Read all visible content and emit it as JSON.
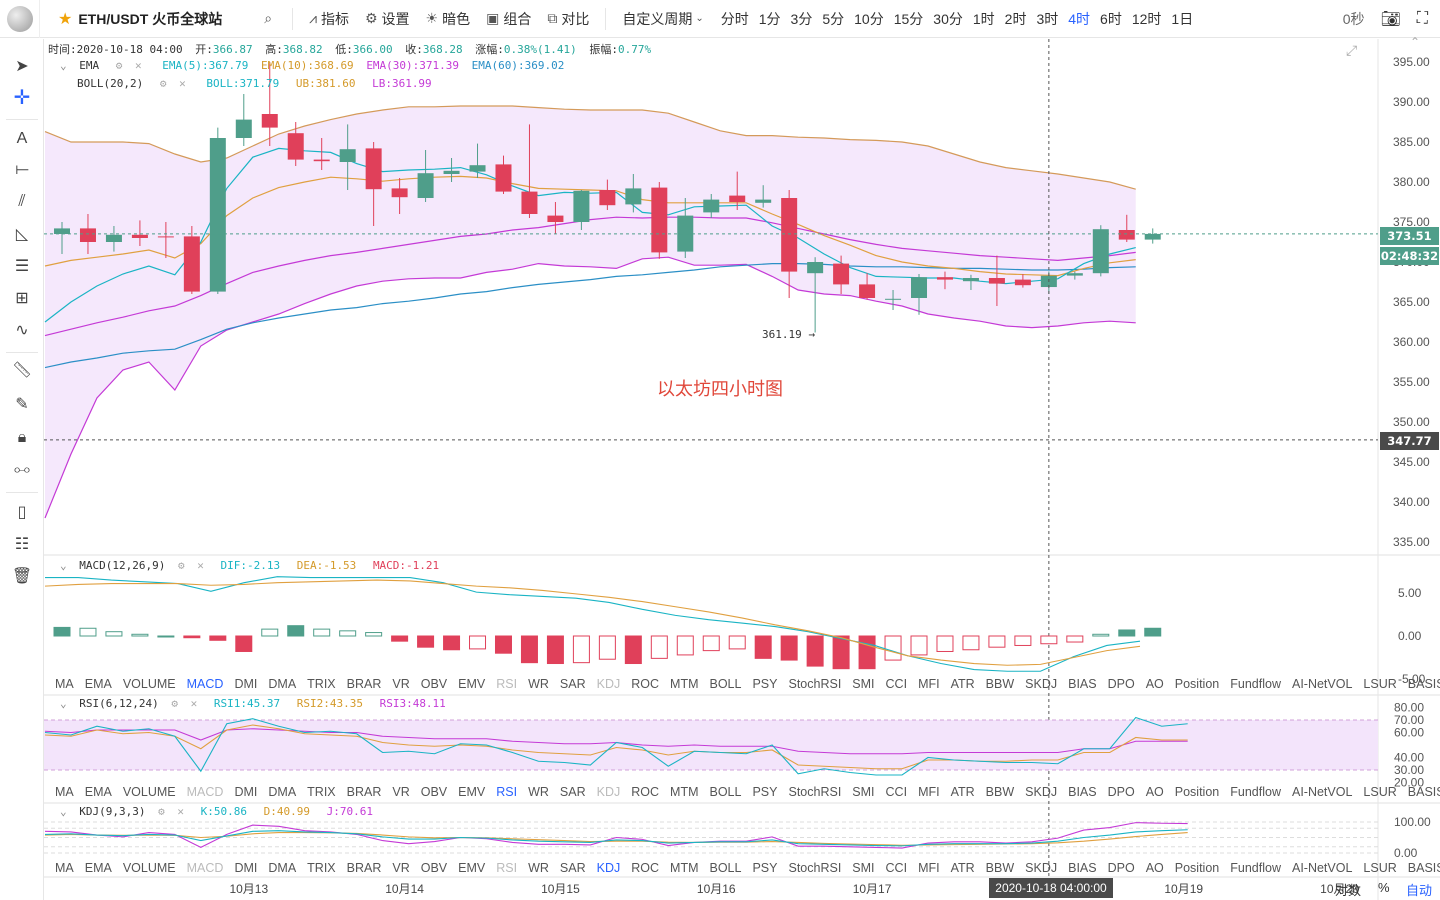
{
  "topbar": {
    "symbol": "ETH/USDT 火币全球站",
    "indicators_label": "指标",
    "settings_label": "设置",
    "theme_label": "暗色",
    "combo_label": "组合",
    "compare_label": "对比",
    "custom_period_label": "自定义周期",
    "periods": [
      "分时",
      "1分",
      "3分",
      "5分",
      "10分",
      "15分",
      "30分",
      "1时",
      "2时",
      "3时",
      "4时",
      "6时",
      "12时",
      "1日"
    ],
    "active_period": "4时",
    "countdown": "0秒"
  },
  "ohlc_info": {
    "time_label": "时间:",
    "time": "2020-10-18 04:00",
    "open_label": "开:",
    "open": "366.87",
    "high_label": "高:",
    "high": "368.82",
    "low_label": "低:",
    "low": "366.00",
    "close_label": "收:",
    "close": "368.28",
    "change_label": "涨幅:",
    "change": "0.38%(1.41)",
    "amplitude_label": "振幅:",
    "amplitude": "0.77%"
  },
  "legends": {
    "ema": {
      "name": "EMA",
      "ema5": "EMA(5):367.79",
      "ema10": "EMA(10):368.69",
      "ema30": "EMA(30):371.39",
      "ema60": "EMA(60):369.02"
    },
    "boll": {
      "name": "BOLL(20,2)",
      "boll": "BOLL:371.79",
      "ub": "UB:381.60",
      "lb": "LB:361.99"
    },
    "macd": {
      "name": "MACD(12,26,9)",
      "dif": "DIF:-2.13",
      "dea": "DEA:-1.53",
      "macd": "MACD:-1.21"
    },
    "rsi": {
      "name": "RSI(6,12,24)",
      "rsi1": "RSI1:45.37",
      "rsi2": "RSI2:43.35",
      "rsi3": "RSI3:48.11"
    },
    "kdj": {
      "name": "KDJ(9,3,3)",
      "k": "K:50.86",
      "d": "D:40.99",
      "j": "J:70.61"
    }
  },
  "indicator_tabs": [
    "MA",
    "EMA",
    "VOLUME",
    "MACD",
    "DMI",
    "DMA",
    "TRIX",
    "BRAR",
    "VR",
    "OBV",
    "EMV",
    "RSI",
    "WR",
    "SAR",
    "KDJ",
    "ROC",
    "MTM",
    "BOLL",
    "PSY",
    "StochRSI",
    "SMI",
    "CCI",
    "MFI",
    "ATR",
    "BBW",
    "SKDJ",
    "BIAS",
    "DPO",
    "AO",
    "Position",
    "Fundflow",
    "AI-NetVOL",
    "LSUR",
    "BASIS"
  ],
  "tab_states": [
    {
      "active": "MACD",
      "dim": [
        "RSI",
        "KDJ"
      ]
    },
    {
      "active": "RSI",
      "dim": [
        "MACD",
        "KDJ"
      ]
    },
    {
      "active": "KDJ",
      "dim": [
        "MACD",
        "RSI"
      ]
    }
  ],
  "watermark": "以太坊四小时图",
  "low_marker": "361.19 →",
  "price_tags": {
    "last": "373.51",
    "countdown": "02:48:32",
    "crosshair": "347.77"
  },
  "crosshair_time": "2020-10-18 04:00:00",
  "bottom_right": {
    "log": "对数",
    "percent": "%",
    "auto": "自动"
  },
  "colors": {
    "up": "#26a69a",
    "up_fill": "#4f9e8a",
    "down": "#e0405a",
    "boll_fill": "#f3e4fb",
    "ema5": "#1ab4c4",
    "ema10": "#e0a040",
    "ema30": "#c43ad6",
    "ema60": "#2b8fc6",
    "accent": "#2962ff"
  },
  "chart_data": {
    "type": "candlestick",
    "title": "以太坊四小时图",
    "pair": "ETH/USDT",
    "interval": "4h",
    "x_tick_labels": [
      "10月13",
      "10月14",
      "10月15",
      "10月16",
      "10月17",
      "10月18",
      "10月19",
      "10月20"
    ],
    "x_tick_index": [
      7,
      13,
      19,
      25,
      31,
      36,
      43,
      49
    ],
    "y_ticks": [
      335,
      340,
      345,
      350,
      355,
      360,
      365,
      370,
      375,
      380,
      385,
      390,
      395
    ],
    "ylim": [
      333,
      398
    ],
    "candles": [
      {
        "o": 373.5,
        "h": 375,
        "l": 371,
        "c": 374.2
      },
      {
        "o": 374.2,
        "h": 376,
        "l": 371,
        "c": 372.5
      },
      {
        "o": 372.5,
        "h": 374.5,
        "l": 371.3,
        "c": 373.4
      },
      {
        "o": 373.4,
        "h": 375.2,
        "l": 372,
        "c": 373
      },
      {
        "o": 373.2,
        "h": 375,
        "l": 370.5,
        "c": 373.1
      },
      {
        "o": 373.2,
        "h": 374.5,
        "l": 366,
        "c": 366.3
      },
      {
        "o": 366.3,
        "h": 386.8,
        "l": 366,
        "c": 385.5
      },
      {
        "o": 385.5,
        "h": 391,
        "l": 384.5,
        "c": 387.8
      },
      {
        "o": 388.5,
        "h": 395,
        "l": 384.5,
        "c": 386.8
      },
      {
        "o": 386.1,
        "h": 387.5,
        "l": 382,
        "c": 382.8
      },
      {
        "o": 382.8,
        "h": 385.5,
        "l": 381.5,
        "c": 382.6
      },
      {
        "o": 382.5,
        "h": 387.2,
        "l": 379,
        "c": 384.1
      },
      {
        "o": 384.2,
        "h": 385,
        "l": 374.5,
        "c": 379.1
      },
      {
        "o": 379.2,
        "h": 380.5,
        "l": 376,
        "c": 378.1
      },
      {
        "o": 378,
        "h": 384,
        "l": 377.5,
        "c": 381.1
      },
      {
        "o": 381,
        "h": 383,
        "l": 380,
        "c": 381.4
      },
      {
        "o": 381.3,
        "h": 384.8,
        "l": 380.5,
        "c": 382.1
      },
      {
        "o": 382.2,
        "h": 383.3,
        "l": 378.5,
        "c": 378.8
      },
      {
        "o": 378.8,
        "h": 387.2,
        "l": 375.5,
        "c": 376
      },
      {
        "o": 375.8,
        "h": 377.5,
        "l": 373.5,
        "c": 375
      },
      {
        "o": 375,
        "h": 379,
        "l": 374,
        "c": 378.9
      },
      {
        "o": 379,
        "h": 380.3,
        "l": 376.5,
        "c": 377.1
      },
      {
        "o": 377.2,
        "h": 381,
        "l": 376.2,
        "c": 379.2
      },
      {
        "o": 379.3,
        "h": 380,
        "l": 370.4,
        "c": 371.2
      },
      {
        "o": 371.3,
        "h": 378,
        "l": 370.5,
        "c": 375.8
      },
      {
        "o": 376.2,
        "h": 378.5,
        "l": 375.5,
        "c": 377.8
      },
      {
        "o": 378.3,
        "h": 381.3,
        "l": 376.5,
        "c": 377.5
      },
      {
        "o": 377.4,
        "h": 379.6,
        "l": 376.8,
        "c": 377.8
      },
      {
        "o": 378,
        "h": 379,
        "l": 365.5,
        "c": 368.8
      },
      {
        "o": 368.6,
        "h": 370.6,
        "l": 361.19,
        "c": 370
      },
      {
        "o": 369.8,
        "h": 370.8,
        "l": 366,
        "c": 367.2
      },
      {
        "o": 367.2,
        "h": 368.6,
        "l": 365.3,
        "c": 365.5
      },
      {
        "o": 365.3,
        "h": 366.5,
        "l": 364,
        "c": 365.4
      },
      {
        "o": 365.5,
        "h": 368.5,
        "l": 363.4,
        "c": 368.1
      },
      {
        "o": 368.1,
        "h": 368.8,
        "l": 366.6,
        "c": 367.8
      },
      {
        "o": 367.6,
        "h": 368.4,
        "l": 366.5,
        "c": 368
      },
      {
        "o": 368,
        "h": 370.8,
        "l": 364.5,
        "c": 367.3
      },
      {
        "o": 367.8,
        "h": 368.5,
        "l": 366.8,
        "c": 367.1
      },
      {
        "o": 366.87,
        "h": 368.82,
        "l": 366,
        "c": 368.28
      },
      {
        "o": 368.3,
        "h": 368.8,
        "l": 367.8,
        "c": 368.6
      },
      {
        "o": 368.6,
        "h": 374.6,
        "l": 368.2,
        "c": 374.1
      },
      {
        "o": 374,
        "h": 375.9,
        "l": 372.5,
        "c": 372.8
      },
      {
        "o": 372.8,
        "h": 374.2,
        "l": 372.3,
        "c": 373.51
      }
    ],
    "boll_ub": [
      386.3,
      385,
      385,
      385,
      384.8,
      383.5,
      382.5,
      383,
      384.5,
      386,
      387,
      387.8,
      388.5,
      389,
      389.4,
      389.4,
      389.5,
      389.5,
      389.5,
      389.3,
      389.1,
      389,
      389,
      389,
      388.6,
      387.5,
      386.4,
      385.8,
      385.8,
      385.6,
      385.5,
      385.3,
      385.2,
      385,
      384.5,
      383.5,
      382.5,
      381.8,
      381.4,
      381,
      380.5,
      380,
      379.1
    ],
    "boll_mid": [
      370.2,
      370.5,
      370.8,
      371,
      371.1,
      370.5,
      371.5,
      372.8,
      374.3,
      375.5,
      376.6,
      377.2,
      377.7,
      378,
      378.5,
      379,
      379.3,
      379.6,
      379.5,
      379.3,
      379.2,
      378.9,
      378.5,
      378.4,
      378,
      376.6,
      375.7,
      375.4,
      374.8,
      374,
      372.7,
      371.7,
      371,
      370.6,
      370,
      369.3,
      369,
      368.7,
      368.6,
      368.7,
      369.3,
      370.6,
      371.1
    ],
    "boll_lb": [
      338,
      346,
      353,
      356.5,
      357.5,
      354,
      359.5,
      361.5,
      362.5,
      363.5,
      364.8,
      366,
      367,
      367.6,
      367.9,
      368,
      368,
      368.7,
      369.1,
      369.8,
      369.5,
      369.4,
      369.2,
      370.4,
      370.6,
      369.6,
      369.6,
      369.7,
      368.2,
      366.5,
      366,
      365.8,
      365.1,
      364.5,
      363.5,
      363,
      362.6,
      362,
      361.8,
      362,
      362.4,
      362.6,
      362.4
    ],
    "ema5": [
      362.5,
      365,
      367,
      368.5,
      369.5,
      368.4,
      372.5,
      379.2,
      383.1,
      384.2,
      383.9,
      383.7,
      382.3,
      381.3,
      381.5,
      381.6,
      381.8,
      380.9,
      379.5,
      378.3,
      378.7,
      378.6,
      378.7,
      376.2,
      375.9,
      376.9,
      377,
      377.1,
      374.5,
      373,
      371,
      369.3,
      368.2,
      368.1,
      368,
      368,
      367.6,
      367.3,
      367.6,
      367.9,
      369.8,
      371,
      371.8
    ],
    "ema10": [
      369.5,
      370.2,
      370.6,
      371,
      371.5,
      370.5,
      372.3,
      375.8,
      378,
      379.3,
      380,
      380.6,
      380.4,
      380.1,
      380.4,
      380.6,
      380.7,
      380.5,
      379.8,
      379.2,
      379.1,
      379,
      378.9,
      377.8,
      377.4,
      377.4,
      377.4,
      377.4,
      376,
      374.7,
      373.3,
      372.1,
      370.8,
      370,
      369.5,
      369.2,
      368.8,
      368.5,
      368.4,
      368.3,
      369.2,
      369.9,
      370.3
    ],
    "ema30": [
      360.8,
      361.6,
      362.4,
      363.1,
      363.9,
      364.5,
      365.8,
      367.3,
      368.7,
      369.5,
      370.2,
      370.8,
      371.2,
      371.7,
      372.2,
      372.7,
      373.2,
      373.5,
      374,
      374.3,
      374.8,
      375.3,
      375.6,
      375.5,
      375.6,
      375.6,
      375.5,
      375.5,
      374.9,
      374.2,
      373.5,
      372.8,
      372.2,
      371.7,
      371.4,
      371.1,
      370.8,
      370.6,
      370.4,
      370.2,
      370.5,
      370.8,
      371.2
    ],
    "ema60": [
      356.8,
      357.5,
      358,
      358.6,
      358.9,
      359.1,
      360.3,
      361.6,
      362.4,
      363,
      363.5,
      364,
      364.3,
      364.8,
      365.1,
      365.5,
      366,
      366.3,
      366.8,
      367.2,
      367.5,
      367.8,
      368.2,
      368.4,
      368.7,
      369,
      369.4,
      369.6,
      369.8,
      369.8,
      369.7,
      369.5,
      369.4,
      369.4,
      369.3,
      369.2,
      369.2,
      369.1,
      369,
      369,
      369.1,
      369.3,
      369.4
    ],
    "macd": {
      "ylim": [
        -6.5,
        7
      ],
      "y_ticks": [
        5,
        0,
        -5
      ],
      "dif": [
        6.8,
        6.8,
        6.5,
        6.3,
        6.1,
        5.2,
        6.2,
        6.9,
        6.8,
        6.8,
        6.8,
        6.8,
        6.2,
        5.1,
        4.8,
        4.6,
        4.4,
        3.9,
        3.1,
        2.4,
        1.9,
        1.5,
        1.1,
        0.5,
        -0.3,
        -1.1,
        -2.3,
        -3.2,
        -3.9,
        -4.1,
        -4.1,
        -2.4,
        -1.1,
        -0.6
      ],
      "dea": [
        5.8,
        6,
        6.1,
        6.1,
        6.1,
        5.9,
        6,
        6.2,
        6.3,
        6.4,
        6.5,
        6.4,
        6.1,
        5.8,
        5.6,
        5.3,
        4.9,
        4.5,
        4,
        3.4,
        2.8,
        2.1,
        1.3,
        0.6,
        -0.2,
        -1.3,
        -2.3,
        -2.8,
        -3.2,
        -3.4,
        -3.3,
        -2.5,
        -1.7,
        -1.2
      ],
      "hist": [
        1,
        0.9,
        0.5,
        0.2,
        0,
        -0.2,
        -0.5,
        -1.8,
        0.8,
        1.2,
        0.8,
        0.6,
        0.4,
        -0.6,
        -1.3,
        -1.6,
        -1.5,
        -2,
        -3.1,
        -3.2,
        -3.1,
        -2.7,
        -3.2,
        -2.6,
        -2.2,
        -1.7,
        -1.5,
        -2.6,
        -2.8,
        -3.5,
        -3.8,
        -3.8,
        -2.8,
        -2.2,
        -1.8,
        -1.6,
        -1.3,
        -1.1,
        -0.9,
        -0.7,
        0.2,
        0.7,
        0.9
      ]
    },
    "rsi": {
      "ylim": [
        17,
        83
      ],
      "y_ticks": [
        80,
        70,
        60,
        40,
        30,
        20
      ],
      "band": [
        30,
        70
      ],
      "rsi1": [
        60,
        58,
        65,
        61,
        63,
        57,
        29,
        67,
        71,
        65,
        60,
        61,
        59,
        44,
        45,
        43,
        51,
        50,
        44,
        37,
        36,
        34,
        52,
        48,
        33,
        45,
        44,
        43,
        50,
        27,
        31,
        28,
        26,
        26,
        40,
        38,
        37,
        36,
        36,
        35,
        47,
        47,
        72,
        65,
        67
      ],
      "rsi2": [
        58,
        57,
        62,
        59,
        60,
        57,
        47,
        62,
        66,
        63,
        59,
        58,
        57,
        52,
        50,
        49,
        50,
        49,
        46,
        44,
        43,
        42,
        48,
        46,
        42,
        45,
        44,
        44,
        46,
        34,
        33,
        32,
        31,
        31,
        38,
        38,
        37,
        37,
        38,
        38,
        44,
        44,
        56,
        54,
        54
      ],
      "rsi3": [
        61,
        60,
        62,
        62,
        62,
        62,
        54,
        62,
        63,
        62,
        61,
        60,
        60,
        57,
        56,
        55,
        55,
        55,
        53,
        52,
        51,
        51,
        52,
        50,
        49,
        50,
        49,
        49,
        49,
        45,
        44,
        43,
        43,
        43,
        44,
        44,
        44,
        44,
        44,
        44,
        47,
        47,
        53,
        53,
        53
      ]
    },
    "kdj": {
      "ylim": [
        -30,
        140
      ],
      "y_ticks": [
        100,
        0
      ],
      "k": [
        60,
        62,
        58,
        56,
        60,
        58,
        40,
        55,
        70,
        72,
        68,
        66,
        62,
        52,
        45,
        45,
        50,
        48,
        42,
        38,
        36,
        34,
        42,
        40,
        32,
        34,
        36,
        36,
        42,
        30,
        28,
        26,
        24,
        23,
        28,
        30,
        30,
        30,
        32,
        38,
        50,
        58,
        68,
        72,
        75
      ],
      "d": [
        58,
        60,
        58,
        57,
        58,
        57,
        50,
        54,
        62,
        66,
        66,
        65,
        63,
        58,
        52,
        49,
        50,
        49,
        46,
        43,
        40,
        37,
        38,
        38,
        35,
        34,
        35,
        35,
        37,
        34,
        31,
        29,
        27,
        25,
        26,
        27,
        28,
        29,
        30,
        33,
        38,
        45,
        53,
        60,
        66
      ],
      "j": [
        70,
        68,
        58,
        52,
        66,
        60,
        18,
        60,
        90,
        86,
        72,
        68,
        60,
        40,
        30,
        37,
        50,
        46,
        34,
        28,
        28,
        26,
        50,
        44,
        24,
        34,
        38,
        38,
        52,
        22,
        22,
        20,
        18,
        16,
        32,
        36,
        36,
        32,
        36,
        48,
        74,
        82,
        98,
        96,
        95
      ]
    }
  }
}
